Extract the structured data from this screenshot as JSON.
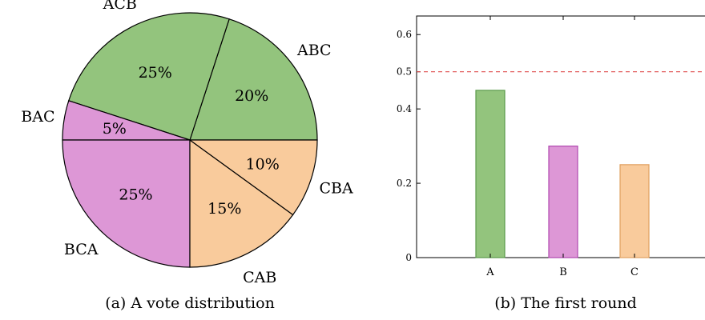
{
  "chart_data": [
    {
      "type": "pie",
      "slices": [
        {
          "label": "ABC",
          "percent_label": "20%",
          "value": 20,
          "color": "#93c47d"
        },
        {
          "label": "ACB",
          "percent_label": "25%",
          "value": 25,
          "color": "#93c47d"
        },
        {
          "label": "BAC",
          "percent_label": "5%",
          "value": 5,
          "color": "#dd97d6"
        },
        {
          "label": "BCA",
          "percent_label": "25%",
          "value": 25,
          "color": "#dd97d6"
        },
        {
          "label": "CAB",
          "percent_label": "15%",
          "value": 15,
          "color": "#f9cb9c"
        },
        {
          "label": "CBA",
          "percent_label": "10%",
          "value": 10,
          "color": "#f9cb9c"
        }
      ]
    },
    {
      "type": "bar",
      "categories": [
        "A",
        "B",
        "C"
      ],
      "values": [
        0.45,
        0.3,
        0.25
      ],
      "colors": [
        "#93c47d",
        "#dd97d6",
        "#f9cb9c"
      ],
      "edge_colors": [
        "#5a9a4a",
        "#b048b0",
        "#e0a060"
      ],
      "ylim": [
        0,
        0.65
      ],
      "yticks": [
        "0",
        "0.2",
        "0.4",
        "0.5",
        "0.6"
      ],
      "threshold": 0.5,
      "threshold_color": "#e05050"
    }
  ],
  "captions": {
    "a": "(a) A vote distribution",
    "b": "(b) The first round"
  }
}
